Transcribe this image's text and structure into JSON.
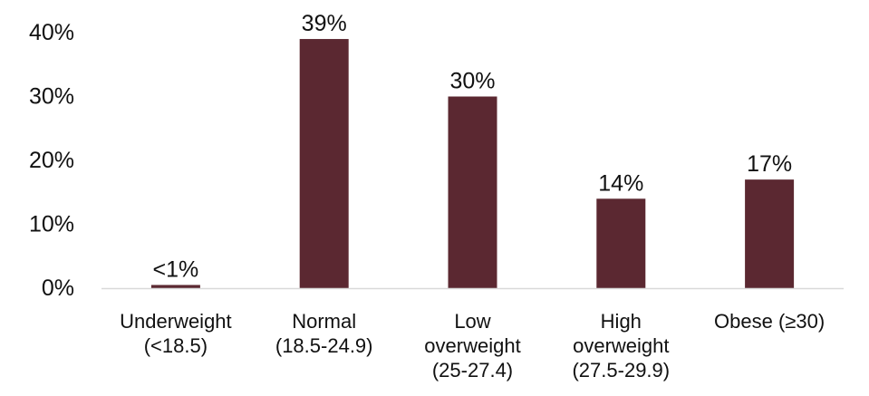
{
  "chart_data": {
    "type": "bar",
    "title": "",
    "xlabel": "",
    "ylabel": "",
    "ylim": [
      0,
      40
    ],
    "yticks": [
      0,
      10,
      20,
      30,
      40
    ],
    "ytick_labels": [
      "0%",
      "10%",
      "20%",
      "30%",
      "40%"
    ],
    "grid": false,
    "legend": "none",
    "bar_color": "#5b2831",
    "categories": [
      [
        "Underweight",
        "(<18.5)"
      ],
      [
        "Normal",
        "(18.5-24.9)"
      ],
      [
        "Low",
        "overweight",
        "(25-27.4)"
      ],
      [
        "High",
        "overweight",
        "(27.5-29.9)"
      ],
      [
        "Obese (≥30)"
      ]
    ],
    "values": [
      0.5,
      39,
      30,
      14,
      17
    ],
    "data_labels": [
      "<1%",
      "39%",
      "30%",
      "14%",
      "17%"
    ]
  }
}
